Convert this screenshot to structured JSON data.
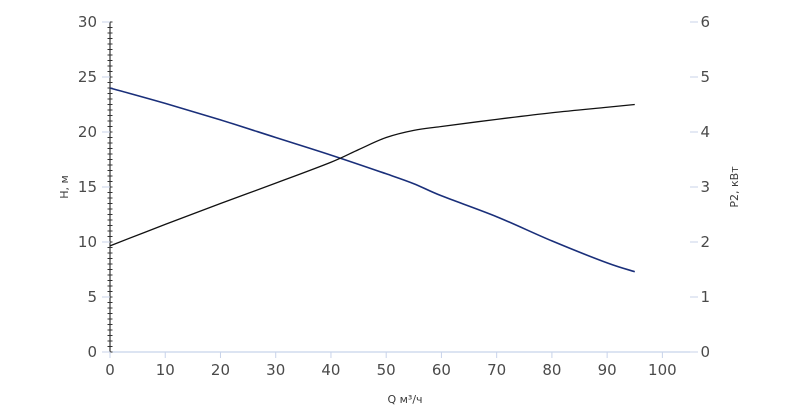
{
  "chart_data": {
    "type": "line",
    "title": "",
    "xlabel": "Q м³/ч",
    "ylabel_left": "H, м",
    "ylabel_right": "P2, кВт",
    "xlim": [
      0,
      105
    ],
    "ylim_left": [
      0,
      30
    ],
    "ylim_right": [
      0,
      6
    ],
    "x_ticks": [
      0,
      10,
      20,
      30,
      40,
      50,
      60,
      70,
      80,
      90,
      100
    ],
    "y_ticks_left": [
      0,
      5,
      10,
      15,
      20,
      25,
      30
    ],
    "y_ticks_right": [
      0,
      1,
      2,
      3,
      4,
      5,
      6
    ],
    "grid": false,
    "legend": "none",
    "colors": {
      "head_curve": "#1a2f7a",
      "power_curve": "#111111",
      "axis": "#c8d3ea",
      "left_axis": "#333333"
    },
    "series": [
      {
        "axis": "left",
        "x": [
          0,
          10,
          20,
          30,
          40,
          50,
          55,
          60,
          70,
          80,
          90,
          95
        ],
        "values": [
          24.0,
          22.6,
          21.1,
          19.5,
          17.9,
          16.2,
          15.3,
          14.2,
          12.3,
          10.1,
          8.1,
          7.3
        ]
      },
      {
        "axis": "right",
        "x": [
          0,
          10,
          20,
          30,
          40,
          45,
          50,
          55,
          60,
          70,
          80,
          90,
          95
        ],
        "values": [
          1.93,
          2.32,
          2.7,
          3.07,
          3.45,
          3.68,
          3.9,
          4.03,
          4.1,
          4.23,
          4.35,
          4.45,
          4.5
        ]
      }
    ]
  }
}
